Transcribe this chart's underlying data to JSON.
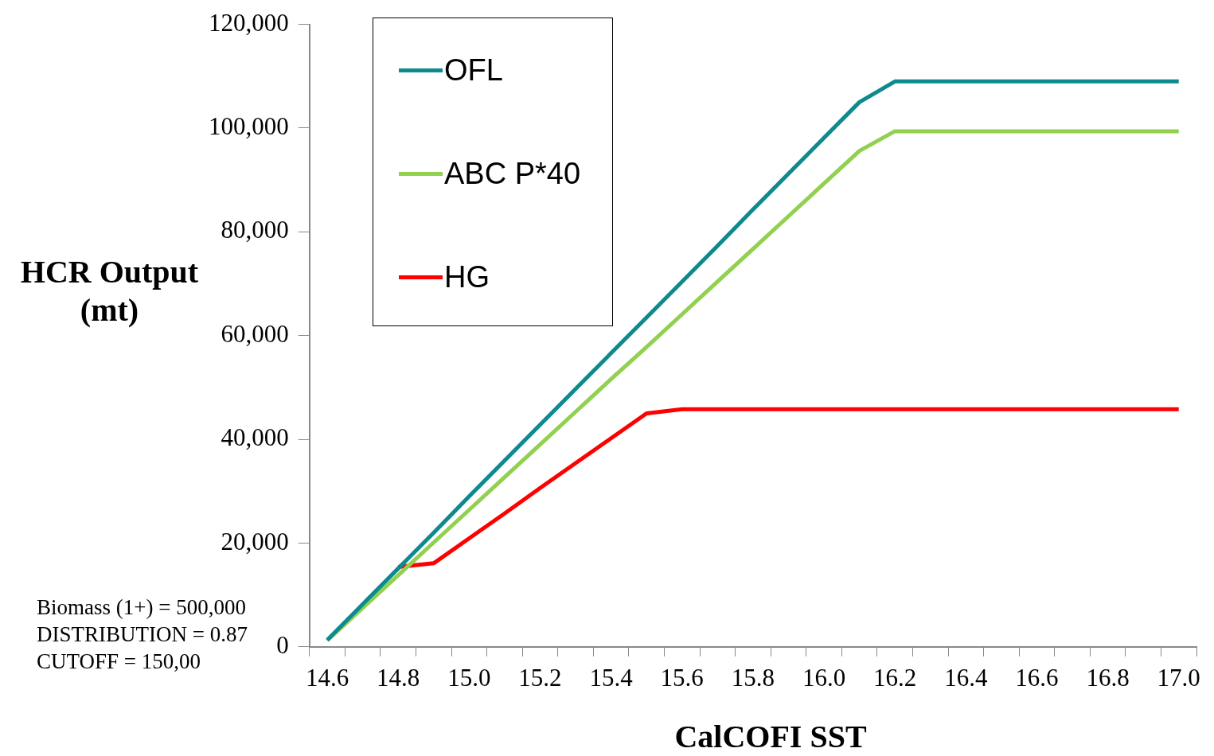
{
  "chart_data": {
    "type": "line",
    "xlabel": "CalCOFI SST",
    "ylabel": "HCR Output (mt)",
    "categories": [
      "14.6",
      null,
      "14.8",
      null,
      "15.0",
      null,
      "15.2",
      null,
      "15.4",
      null,
      "15.6",
      null,
      "15.8",
      null,
      "16.0",
      null,
      "16.2",
      null,
      "16.4",
      null,
      "16.6",
      null,
      "16.8",
      null,
      "17.0"
    ],
    "series": [
      {
        "name": "OFL",
        "color": "#0e8a8f",
        "values": [
          1300,
          8200,
          15100,
          22000,
          29000,
          35900,
          42800,
          49700,
          56600,
          63500,
          70400,
          77300,
          84300,
          91200,
          98100,
          105000,
          109000,
          109000,
          109000,
          109000,
          109000,
          109000,
          109000,
          109000,
          109000
        ]
      },
      {
        "name": "ABC P*40",
        "color": "#92d050",
        "values": [
          1200,
          7500,
          13800,
          20100,
          26400,
          32700,
          39000,
          45300,
          51600,
          57800,
          64100,
          70400,
          76700,
          83000,
          89300,
          95600,
          99400,
          99400,
          99400,
          99400,
          99400,
          99400,
          99400,
          99400,
          99400
        ]
      },
      {
        "name": "HG",
        "color": "#ff0000",
        "values": [
          null,
          null,
          15400,
          16100,
          20900,
          25700,
          30600,
          35400,
          40200,
          45000,
          45800,
          45800,
          45800,
          45800,
          45800,
          45800,
          45800,
          45800,
          45800,
          45800,
          45800,
          45800,
          45800,
          45800,
          45800
        ]
      }
    ],
    "ylim": [
      0,
      120000
    ],
    "yticks": [
      {
        "value": 0,
        "label": "0"
      },
      {
        "value": 20000,
        "label": "20,000"
      },
      {
        "value": 40000,
        "label": "40,000"
      },
      {
        "value": 60000,
        "label": "60,000"
      },
      {
        "value": 80000,
        "label": "80,000"
      },
      {
        "value": 100000,
        "label": "100,000"
      },
      {
        "value": 120000,
        "label": "120,000"
      }
    ],
    "grid": false,
    "legend": "top left",
    "marker": "none",
    "line_style": "solid",
    "annotations": [
      "Biomass (1+) = 500,000",
      "DISTRIBUTION = 0.87",
      "CUTOFF = 150,00"
    ]
  }
}
